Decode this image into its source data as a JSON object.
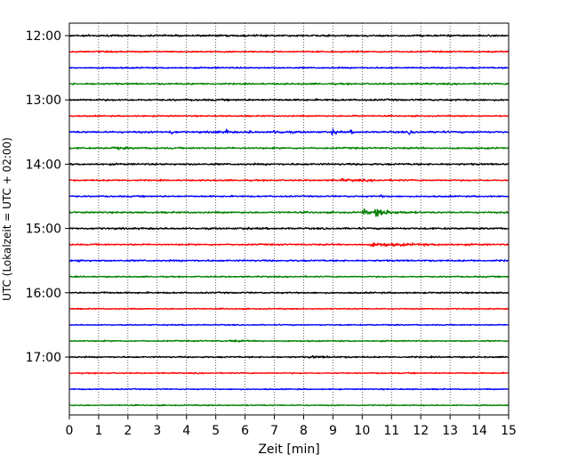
{
  "chart_data": {
    "type": "line",
    "title": "",
    "xlabel": "Zeit  [min]",
    "ylabel": "UTC (Lokalzeit = UTC + 02:00)",
    "xlim": [
      0,
      15
    ],
    "x_ticks": [
      0,
      1,
      2,
      3,
      4,
      5,
      6,
      7,
      8,
      9,
      10,
      11,
      12,
      13,
      14,
      15
    ],
    "grid": "vertical dotted",
    "trace_interval_min": 15,
    "hour_tick_labels": [
      "12:00",
      "13:00",
      "14:00",
      "15:00",
      "16:00",
      "17:00"
    ],
    "series": [
      {
        "start": "12:00",
        "color": "#000000",
        "amplitude": 0.55,
        "events": []
      },
      {
        "start": "12:15",
        "color": "#ff0000",
        "amplitude": 0.45,
        "events": []
      },
      {
        "start": "12:30",
        "color": "#0000ff",
        "amplitude": 0.45,
        "events": []
      },
      {
        "start": "12:45",
        "color": "#008000",
        "amplitude": 0.5,
        "events": []
      },
      {
        "start": "13:00",
        "color": "#000000",
        "amplitude": 0.55,
        "events": []
      },
      {
        "start": "13:15",
        "color": "#ff0000",
        "amplitude": 0.4,
        "events": [
          {
            "t": 9.7,
            "amp": 0.6,
            "dur": 0.4
          }
        ]
      },
      {
        "start": "13:30",
        "color": "#0000ff",
        "amplitude": 0.55,
        "events": [
          {
            "t": 3.45,
            "amp": 1.7,
            "dur": 0.25
          },
          {
            "t": 4.95,
            "amp": 1.0,
            "dur": 0.3
          },
          {
            "t": 5.35,
            "amp": 1.4,
            "dur": 0.3
          },
          {
            "t": 6.1,
            "amp": 0.8,
            "dur": 0.3
          },
          {
            "t": 7.0,
            "amp": 0.8,
            "dur": 1.0
          },
          {
            "t": 8.95,
            "amp": 1.7,
            "dur": 0.4
          },
          {
            "t": 9.6,
            "amp": 0.8,
            "dur": 0.3
          },
          {
            "t": 11.6,
            "amp": 1.0,
            "dur": 0.4
          },
          {
            "t": 12.5,
            "amp": 0.6,
            "dur": 0.4
          }
        ]
      },
      {
        "start": "13:45",
        "color": "#008000",
        "amplitude": 0.5,
        "events": [
          {
            "t": 1.5,
            "amp": 0.5,
            "dur": 1.5
          }
        ]
      },
      {
        "start": "14:00",
        "color": "#000000",
        "amplitude": 0.55,
        "events": []
      },
      {
        "start": "14:15",
        "color": "#ff0000",
        "amplitude": 0.45,
        "events": [
          {
            "t": 9.3,
            "amp": 0.5,
            "dur": 3.0
          }
        ]
      },
      {
        "start": "14:30",
        "color": "#0000ff",
        "amplitude": 0.45,
        "events": [
          {
            "t": 10.6,
            "amp": 0.6,
            "dur": 0.4
          }
        ]
      },
      {
        "start": "14:45",
        "color": "#008000",
        "amplitude": 0.5,
        "events": [
          {
            "t": 10.05,
            "amp": 1.6,
            "dur": 0.6
          },
          {
            "t": 10.45,
            "amp": 2.2,
            "dur": 1.5
          }
        ]
      },
      {
        "start": "15:00",
        "color": "#000000",
        "amplitude": 0.55,
        "events": [
          {
            "t": 5.95,
            "amp": 0.7,
            "dur": 0.3
          }
        ]
      },
      {
        "start": "15:15",
        "color": "#ff0000",
        "amplitude": 0.45,
        "events": [
          {
            "t": 10.3,
            "amp": 1.0,
            "dur": 4.0
          }
        ]
      },
      {
        "start": "15:30",
        "color": "#0000ff",
        "amplitude": 0.5,
        "events": [
          {
            "t": 0.3,
            "amp": 0.6,
            "dur": 0.4
          }
        ]
      },
      {
        "start": "15:45",
        "color": "#008000",
        "amplitude": 0.4,
        "events": []
      },
      {
        "start": "16:00",
        "color": "#000000",
        "amplitude": 0.45,
        "events": [
          {
            "t": 1.15,
            "amp": 0.7,
            "dur": 0.3
          }
        ]
      },
      {
        "start": "16:15",
        "color": "#ff0000",
        "amplitude": 0.35,
        "events": []
      },
      {
        "start": "16:30",
        "color": "#0000ff",
        "amplitude": 0.35,
        "events": []
      },
      {
        "start": "16:45",
        "color": "#008000",
        "amplitude": 0.4,
        "events": [
          {
            "t": 5.5,
            "amp": 0.5,
            "dur": 1.0
          }
        ]
      },
      {
        "start": "17:00",
        "color": "#000000",
        "amplitude": 0.45,
        "events": [
          {
            "t": 8.2,
            "amp": 0.5,
            "dur": 1.8
          }
        ]
      },
      {
        "start": "17:15",
        "color": "#ff0000",
        "amplitude": 0.35,
        "events": []
      },
      {
        "start": "17:30",
        "color": "#0000ff",
        "amplitude": 0.35,
        "events": []
      },
      {
        "start": "17:45",
        "color": "#008000",
        "amplitude": 0.35,
        "events": []
      }
    ]
  }
}
